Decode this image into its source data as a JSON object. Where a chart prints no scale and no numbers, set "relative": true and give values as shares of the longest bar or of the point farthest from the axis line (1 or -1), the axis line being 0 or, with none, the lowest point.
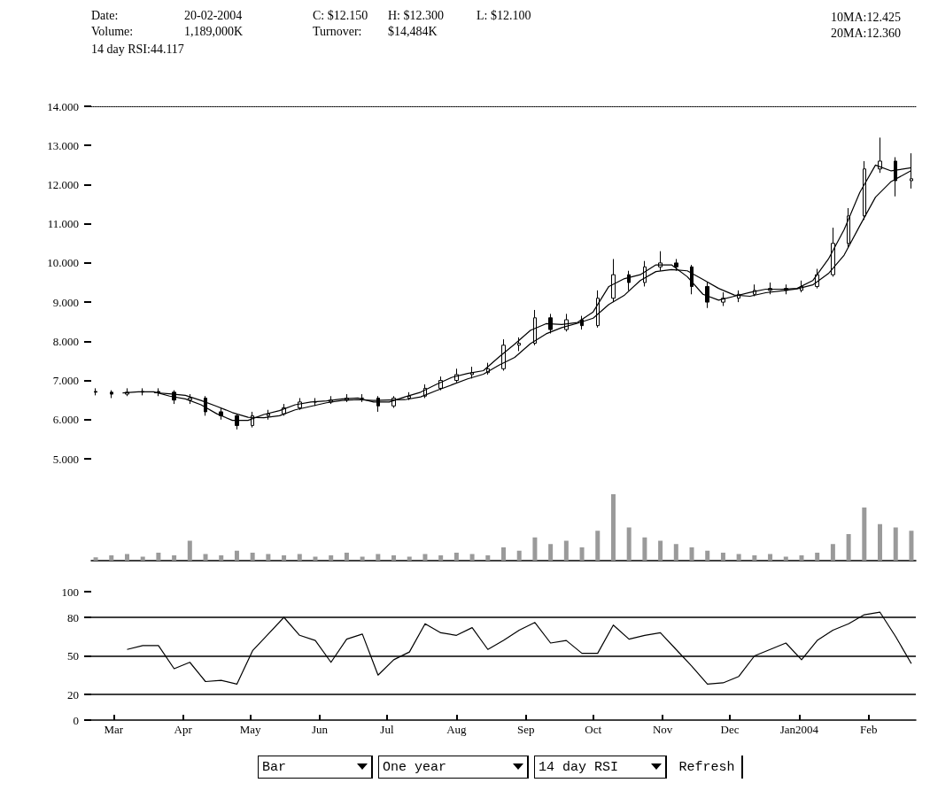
{
  "chart_data": [
    {
      "type": "candlestick",
      "color": "#000000",
      "annotations": [
        "Date:",
        "20-02-2004",
        "C: $12.150",
        "H: $12.300",
        "L: $12.100",
        "10MA:12.425",
        "Volume:",
        "1,189,000K",
        "Turnover:",
        "$14,484K",
        "20MA:12.360",
        "14 day RSI:44.117"
      ],
      "x": [
        "2003-02-21",
        "2003-02-28",
        "2003-03-07",
        "2003-03-14",
        "2003-03-21",
        "2003-03-28",
        "2003-04-04",
        "2003-04-11",
        "2003-04-18",
        "2003-04-25",
        "2003-05-02",
        "2003-05-09",
        "2003-05-16",
        "2003-05-23",
        "2003-05-30",
        "2003-06-06",
        "2003-06-13",
        "2003-06-20",
        "2003-06-27",
        "2003-07-04",
        "2003-07-11",
        "2003-07-18",
        "2003-07-25",
        "2003-08-01",
        "2003-08-08",
        "2003-08-15",
        "2003-08-22",
        "2003-08-29",
        "2003-09-05",
        "2003-09-12",
        "2003-09-19",
        "2003-09-26",
        "2003-10-03",
        "2003-10-10",
        "2003-10-17",
        "2003-10-24",
        "2003-10-31",
        "2003-11-07",
        "2003-11-14",
        "2003-11-21",
        "2003-11-28",
        "2003-12-05",
        "2003-12-12",
        "2003-12-19",
        "2003-12-26",
        "2004-01-02",
        "2004-01-09",
        "2004-01-16",
        "2004-01-23",
        "2004-01-30",
        "2004-02-06",
        "2004-02-13",
        "2004-02-20"
      ],
      "ohlc": [
        [
          6.72,
          6.8,
          6.62,
          6.7
        ],
        [
          6.7,
          6.75,
          6.55,
          6.65
        ],
        [
          6.65,
          6.8,
          6.6,
          6.7
        ],
        [
          6.7,
          6.8,
          6.62,
          6.72
        ],
        [
          6.72,
          6.8,
          6.6,
          6.7
        ],
        [
          6.7,
          6.75,
          6.4,
          6.5
        ],
        [
          6.5,
          6.65,
          6.4,
          6.55
        ],
        [
          6.55,
          6.6,
          6.1,
          6.2
        ],
        [
          6.2,
          6.3,
          6.0,
          6.1
        ],
        [
          6.1,
          6.15,
          5.75,
          5.85
        ],
        [
          5.85,
          6.2,
          5.8,
          6.1
        ],
        [
          6.1,
          6.25,
          6.0,
          6.15
        ],
        [
          6.15,
          6.4,
          6.1,
          6.3
        ],
        [
          6.3,
          6.55,
          6.25,
          6.45
        ],
        [
          6.45,
          6.55,
          6.35,
          6.45
        ],
        [
          6.45,
          6.6,
          6.4,
          6.5
        ],
        [
          6.5,
          6.65,
          6.45,
          6.55
        ],
        [
          6.55,
          6.65,
          6.45,
          6.55
        ],
        [
          6.55,
          6.6,
          6.2,
          6.35
        ],
        [
          6.35,
          6.6,
          6.3,
          6.55
        ],
        [
          6.55,
          6.7,
          6.5,
          6.6
        ],
        [
          6.6,
          6.9,
          6.55,
          6.8
        ],
        [
          6.8,
          7.1,
          6.75,
          7.0
        ],
        [
          7.0,
          7.3,
          6.95,
          7.15
        ],
        [
          7.15,
          7.35,
          7.05,
          7.2
        ],
        [
          7.2,
          7.45,
          7.15,
          7.3
        ],
        [
          7.3,
          8.05,
          7.25,
          7.9
        ],
        [
          7.9,
          8.1,
          7.75,
          7.95
        ],
        [
          7.95,
          8.8,
          7.9,
          8.6
        ],
        [
          8.6,
          8.7,
          8.2,
          8.3
        ],
        [
          8.3,
          8.7,
          8.25,
          8.55
        ],
        [
          8.55,
          8.65,
          8.3,
          8.4
        ],
        [
          8.4,
          9.3,
          8.35,
          9.1
        ],
        [
          9.1,
          10.1,
          9.0,
          9.7
        ],
        [
          9.7,
          9.8,
          9.3,
          9.5
        ],
        [
          9.5,
          10.05,
          9.4,
          9.9
        ],
        [
          9.9,
          10.3,
          9.8,
          10.0
        ],
        [
          10.0,
          10.1,
          9.8,
          9.9
        ],
        [
          9.9,
          9.95,
          9.2,
          9.4
        ],
        [
          9.4,
          9.5,
          8.85,
          9.0
        ],
        [
          9.0,
          9.25,
          8.9,
          9.1
        ],
        [
          9.1,
          9.3,
          9.0,
          9.2
        ],
        [
          9.2,
          9.45,
          9.15,
          9.3
        ],
        [
          9.3,
          9.5,
          9.2,
          9.35
        ],
        [
          9.35,
          9.45,
          9.2,
          9.3
        ],
        [
          9.3,
          9.55,
          9.25,
          9.4
        ],
        [
          9.4,
          9.85,
          9.35,
          9.7
        ],
        [
          9.7,
          10.9,
          9.65,
          10.5
        ],
        [
          10.5,
          11.4,
          10.4,
          11.2
        ],
        [
          11.2,
          12.6,
          11.1,
          12.4
        ],
        [
          12.4,
          13.2,
          12.3,
          12.6
        ],
        [
          12.6,
          12.7,
          11.7,
          12.1
        ],
        [
          12.1,
          12.8,
          11.9,
          12.15
        ]
      ],
      "series": [
        {
          "type": "line",
          "color": "#000000",
          "x": [
            "2003-03-05",
            "2003-03-12",
            "2003-03-19",
            "2003-03-26",
            "2003-04-02",
            "2003-04-09",
            "2003-04-16",
            "2003-04-23",
            "2003-04-30",
            "2003-05-07",
            "2003-05-14",
            "2003-05-21",
            "2003-05-28",
            "2003-06-04",
            "2003-06-11",
            "2003-06-18",
            "2003-06-25",
            "2003-07-02",
            "2003-07-09",
            "2003-07-16",
            "2003-07-23",
            "2003-07-30",
            "2003-08-06",
            "2003-08-13",
            "2003-08-20",
            "2003-08-27",
            "2003-09-03",
            "2003-09-10",
            "2003-09-17",
            "2003-09-24",
            "2003-10-01",
            "2003-10-08",
            "2003-10-15",
            "2003-10-22",
            "2003-10-29",
            "2003-11-05",
            "2003-11-12",
            "2003-11-19",
            "2003-11-26",
            "2003-12-03",
            "2003-12-10",
            "2003-12-17",
            "2003-12-24",
            "2003-12-31",
            "2004-01-07",
            "2004-01-14",
            "2004-01-21",
            "2004-01-28",
            "2004-02-04",
            "2004-02-11",
            "2004-02-20"
          ],
          "values": [
            6.68,
            6.71,
            6.71,
            6.6,
            6.53,
            6.38,
            6.15,
            5.98,
            5.98,
            6.13,
            6.23,
            6.38,
            6.45,
            6.48,
            6.53,
            6.55,
            6.45,
            6.45,
            6.58,
            6.7,
            6.9,
            7.08,
            7.18,
            7.25,
            7.6,
            7.93,
            8.28,
            8.45,
            8.43,
            8.48,
            8.75,
            9.4,
            9.6,
            9.7,
            9.95,
            9.95,
            9.65,
            9.2,
            9.05,
            9.15,
            9.25,
            9.33,
            9.33,
            9.35,
            9.55,
            10.1,
            10.85,
            11.8,
            12.5,
            12.35,
            12.43
          ]
        },
        {
          "type": "line",
          "color": "#000000",
          "x": [
            "2003-03-19",
            "2003-03-26",
            "2003-04-02",
            "2003-04-09",
            "2003-04-16",
            "2003-04-23",
            "2003-04-30",
            "2003-05-07",
            "2003-05-14",
            "2003-05-21",
            "2003-05-28",
            "2003-06-04",
            "2003-06-11",
            "2003-06-18",
            "2003-06-25",
            "2003-07-02",
            "2003-07-09",
            "2003-07-16",
            "2003-07-23",
            "2003-07-30",
            "2003-08-06",
            "2003-08-13",
            "2003-08-20",
            "2003-08-27",
            "2003-09-03",
            "2003-09-10",
            "2003-09-17",
            "2003-09-24",
            "2003-10-01",
            "2003-10-08",
            "2003-10-15",
            "2003-10-22",
            "2003-10-29",
            "2003-11-05",
            "2003-11-12",
            "2003-11-19",
            "2003-11-26",
            "2003-12-03",
            "2003-12-10",
            "2003-12-17",
            "2003-12-24",
            "2003-12-31",
            "2004-01-07",
            "2004-01-14",
            "2004-01-21",
            "2004-01-28",
            "2004-02-04",
            "2004-02-11",
            "2004-02-20"
          ],
          "values": [
            6.69,
            6.66,
            6.62,
            6.49,
            6.34,
            6.18,
            6.06,
            6.05,
            6.1,
            6.25,
            6.34,
            6.43,
            6.49,
            6.51,
            6.49,
            6.5,
            6.51,
            6.58,
            6.74,
            6.89,
            7.04,
            7.16,
            7.39,
            7.59,
            7.94,
            8.19,
            8.35,
            8.46,
            8.59,
            8.94,
            9.18,
            9.55,
            9.78,
            9.83,
            9.8,
            9.58,
            9.35,
            9.18,
            9.15,
            9.24,
            9.29,
            9.34,
            9.44,
            9.73,
            10.2,
            10.95,
            11.68,
            12.08,
            12.36
          ]
        }
      ],
      "xlim": [
        "2003-02-19",
        "2004-02-22"
      ],
      "ylim": [
        5,
        14
      ],
      "yticks": [
        {
          "value": 5,
          "label": "5.000"
        },
        {
          "value": 6,
          "label": "6.000"
        },
        {
          "value": 7,
          "label": "7.000"
        },
        {
          "value": 8,
          "label": "8.000"
        },
        {
          "value": 9,
          "label": "9.000"
        },
        {
          "value": 10,
          "label": "10.000"
        },
        {
          "value": 11,
          "label": "11.000"
        },
        {
          "value": 12,
          "label": "12.000"
        },
        {
          "value": 13,
          "label": "13.000"
        },
        {
          "value": 14,
          "label": "14.000"
        }
      ],
      "tick_labels": "y",
      "marker": "none"
    },
    {
      "type": "bar",
      "relative": true,
      "color": "#9a9a9a",
      "tick_labels": false,
      "x": [
        "2003-02-21",
        "2003-02-28",
        "2003-03-07",
        "2003-03-14",
        "2003-03-21",
        "2003-03-28",
        "2003-04-04",
        "2003-04-11",
        "2003-04-18",
        "2003-04-25",
        "2003-05-02",
        "2003-05-09",
        "2003-05-16",
        "2003-05-23",
        "2003-05-30",
        "2003-06-06",
        "2003-06-13",
        "2003-06-20",
        "2003-06-27",
        "2003-07-04",
        "2003-07-11",
        "2003-07-18",
        "2003-07-25",
        "2003-08-01",
        "2003-08-08",
        "2003-08-15",
        "2003-08-22",
        "2003-08-29",
        "2003-09-05",
        "2003-09-12",
        "2003-09-19",
        "2003-09-26",
        "2003-10-03",
        "2003-10-10",
        "2003-10-17",
        "2003-10-24",
        "2003-10-31",
        "2003-11-07",
        "2003-11-14",
        "2003-11-21",
        "2003-11-28",
        "2003-12-05",
        "2003-12-12",
        "2003-12-19",
        "2003-12-26",
        "2004-01-02",
        "2004-01-09",
        "2004-01-16",
        "2004-01-23",
        "2004-01-30",
        "2004-02-06",
        "2004-02-13",
        "2004-02-20"
      ],
      "values": [
        0.05,
        0.08,
        0.1,
        0.06,
        0.12,
        0.08,
        0.3,
        0.1,
        0.08,
        0.15,
        0.12,
        0.1,
        0.08,
        0.1,
        0.06,
        0.08,
        0.12,
        0.06,
        0.1,
        0.08,
        0.06,
        0.1,
        0.08,
        0.12,
        0.1,
        0.08,
        0.2,
        0.15,
        0.35,
        0.25,
        0.3,
        0.2,
        0.45,
        1.0,
        0.5,
        0.35,
        0.3,
        0.25,
        0.2,
        0.15,
        0.12,
        0.1,
        0.08,
        0.1,
        0.06,
        0.08,
        0.12,
        0.25,
        0.4,
        0.8,
        0.55,
        0.5,
        0.45
      ],
      "xlim": [
        "2003-02-19",
        "2004-02-22"
      ]
    },
    {
      "type": "line",
      "color": "#000000",
      "marker": "none",
      "x": [
        "2003-03-07",
        "2003-03-14",
        "2003-03-21",
        "2003-03-28",
        "2003-04-04",
        "2003-04-11",
        "2003-04-18",
        "2003-04-25",
        "2003-05-02",
        "2003-05-09",
        "2003-05-16",
        "2003-05-23",
        "2003-05-30",
        "2003-06-06",
        "2003-06-13",
        "2003-06-20",
        "2003-06-27",
        "2003-07-04",
        "2003-07-11",
        "2003-07-18",
        "2003-07-25",
        "2003-08-01",
        "2003-08-08",
        "2003-08-15",
        "2003-08-22",
        "2003-08-29",
        "2003-09-05",
        "2003-09-12",
        "2003-09-19",
        "2003-09-26",
        "2003-10-03",
        "2003-10-10",
        "2003-10-17",
        "2003-10-24",
        "2003-10-31",
        "2003-11-07",
        "2003-11-14",
        "2003-11-21",
        "2003-11-28",
        "2003-12-05",
        "2003-12-12",
        "2003-12-19",
        "2003-12-26",
        "2004-01-02",
        "2004-01-09",
        "2004-01-16",
        "2004-01-23",
        "2004-01-30",
        "2004-02-06",
        "2004-02-13",
        "2004-02-20"
      ],
      "values": [
        55,
        58,
        58,
        40,
        45,
        30,
        31,
        28,
        54,
        67,
        80,
        66,
        62,
        45,
        63,
        67,
        35,
        47,
        53,
        75,
        68,
        66,
        72,
        55,
        62,
        70,
        76,
        60,
        62,
        52,
        52,
        74,
        63,
        66,
        68,
        55,
        42,
        28,
        29,
        34,
        50,
        55,
        60,
        47,
        62,
        70,
        75,
        82,
        84,
        65,
        44
      ],
      "xlim": [
        "2003-02-19",
        "2004-02-22"
      ],
      "xticks": [
        {
          "value": "2003-03-01",
          "label": "Mar"
        },
        {
          "value": "2003-04-01",
          "label": "Apr"
        },
        {
          "value": "2003-05-01",
          "label": "May"
        },
        {
          "value": "2003-06-01",
          "label": "Jun"
        },
        {
          "value": "2003-07-01",
          "label": "Jul"
        },
        {
          "value": "2003-08-01",
          "label": "Aug"
        },
        {
          "value": "2003-09-01",
          "label": "Sep"
        },
        {
          "value": "2003-10-01",
          "label": "Oct"
        },
        {
          "value": "2003-11-01",
          "label": "Nov"
        },
        {
          "value": "2003-12-01",
          "label": "Dec"
        },
        {
          "value": "2004-01-01",
          "label": "Jan2004"
        },
        {
          "value": "2004-02-01",
          "label": "Feb"
        }
      ],
      "ylim": [
        0,
        100
      ],
      "yticks": [
        0,
        20,
        50,
        80,
        100
      ],
      "ref_lines": [
        {
          "axis": "y",
          "value": 80
        },
        {
          "axis": "y",
          "value": 50
        },
        {
          "axis": "y",
          "value": 20
        }
      ],
      "annotations": [
        "Bar",
        "One year",
        "14 day RSI",
        "Refresh"
      ]
    }
  ]
}
